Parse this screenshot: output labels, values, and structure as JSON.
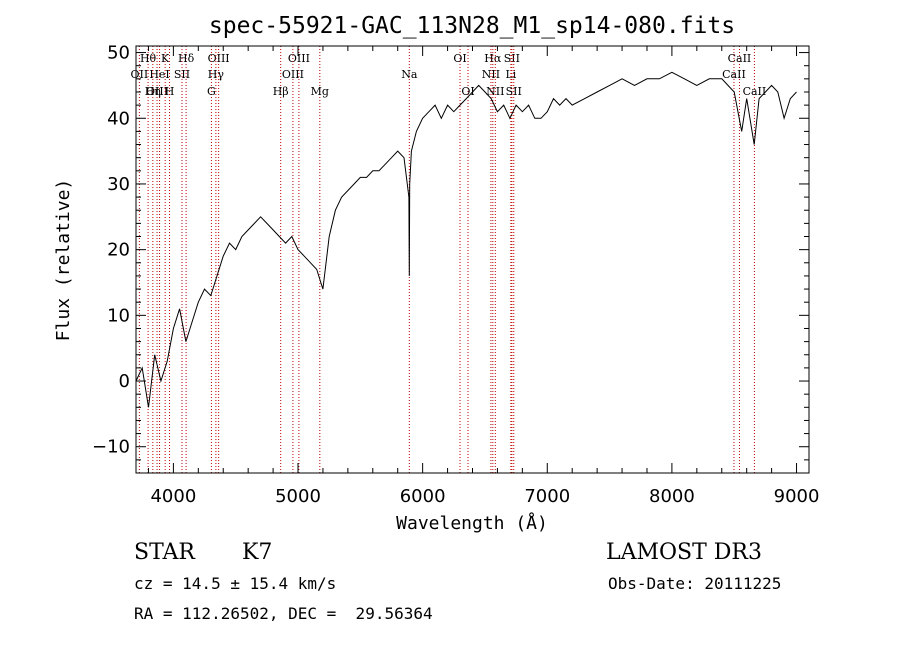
{
  "chart_data": {
    "type": "line",
    "title": "spec-55921-GAC_113N28_M1_sp14-080.fits",
    "xlabel": "Wavelength (Å)",
    "ylabel": "Flux (relative)",
    "xlim": [
      3700,
      9100
    ],
    "ylim": [
      -14,
      51
    ],
    "xticks": [
      4000,
      5000,
      6000,
      7000,
      8000,
      9000
    ],
    "yticks": [
      -10,
      0,
      10,
      20,
      30,
      40,
      50
    ],
    "spectrum": {
      "name": "flux",
      "x": [
        3700,
        3750,
        3800,
        3850,
        3900,
        3950,
        4000,
        4050,
        4100,
        4150,
        4200,
        4250,
        4300,
        4350,
        4400,
        4450,
        4500,
        4550,
        4600,
        4650,
        4700,
        4750,
        4800,
        4850,
        4900,
        4950,
        5000,
        5050,
        5100,
        5150,
        5200,
        5250,
        5300,
        5350,
        5400,
        5450,
        5500,
        5550,
        5600,
        5650,
        5700,
        5750,
        5800,
        5850,
        5890,
        5893,
        5896,
        5910,
        5950,
        6000,
        6050,
        6100,
        6150,
        6200,
        6250,
        6300,
        6350,
        6400,
        6450,
        6500,
        6550,
        6600,
        6650,
        6700,
        6750,
        6800,
        6850,
        6900,
        6950,
        7000,
        7050,
        7100,
        7150,
        7200,
        7300,
        7400,
        7500,
        7600,
        7700,
        7800,
        7900,
        8000,
        8100,
        8200,
        8300,
        8400,
        8450,
        8500,
        8540,
        8560,
        8600,
        8660,
        8700,
        8750,
        8800,
        8850,
        8900,
        8950,
        9000
      ],
      "y": [
        0,
        2,
        -4,
        4,
        0,
        3,
        8,
        11,
        6,
        9,
        12,
        14,
        13,
        16,
        19,
        21,
        20,
        22,
        23,
        24,
        25,
        24,
        23,
        22,
        21,
        22,
        20,
        19,
        18,
        17,
        14,
        22,
        26,
        28,
        29,
        30,
        31,
        31,
        32,
        32,
        33,
        34,
        35,
        34,
        28,
        16,
        30,
        35,
        38,
        40,
        41,
        42,
        40,
        42,
        41,
        42,
        43,
        44,
        45,
        44,
        43,
        41,
        42,
        40,
        42,
        41,
        42,
        40,
        40,
        41,
        43,
        42,
        43,
        42,
        43,
        44,
        45,
        46,
        45,
        46,
        46,
        47,
        46,
        45,
        46,
        46,
        45,
        44,
        40,
        38,
        43,
        36,
        43,
        44,
        45,
        44,
        40,
        43,
        44
      ]
    },
    "line_markers": [
      {
        "label": "Hθ",
        "x": 3797,
        "row": 1
      },
      {
        "label": "OII",
        "x": 3727,
        "row": 2
      },
      {
        "label": "OIII",
        "x": 3869,
        "row": 3
      },
      {
        "label": "K",
        "x": 3934,
        "row": 1
      },
      {
        "label": "HeI",
        "x": 3889,
        "row": 2
      },
      {
        "label": "Hη",
        "x": 3835,
        "row": 3
      },
      {
        "label": "SII",
        "x": 4069,
        "row": 2
      },
      {
        "label": "H",
        "x": 3969,
        "row": 3
      },
      {
        "label": "Hδ",
        "x": 4102,
        "row": 1
      },
      {
        "label": "OIII",
        "x": 4363,
        "row": 1
      },
      {
        "label": "Hγ",
        "x": 4341,
        "row": 2
      },
      {
        "label": "G",
        "x": 4305,
        "row": 3
      },
      {
        "label": "OIII",
        "x": 5007,
        "row": 1
      },
      {
        "label": "OIII",
        "x": 4959,
        "row": 2
      },
      {
        "label": "Hβ",
        "x": 4861,
        "row": 3
      },
      {
        "label": "Mg",
        "x": 5175,
        "row": 3
      },
      {
        "label": "Na",
        "x": 5893,
        "row": 2
      },
      {
        "label": "OI",
        "x": 6300,
        "row": 1
      },
      {
        "label": "OI",
        "x": 6364,
        "row": 3
      },
      {
        "label": "Hα",
        "x": 6563,
        "row": 1
      },
      {
        "label": "NII",
        "x": 6548,
        "row": 2
      },
      {
        "label": "NII",
        "x": 6583,
        "row": 3
      },
      {
        "label": "Li",
        "x": 6708,
        "row": 2
      },
      {
        "label": "SII",
        "x": 6716,
        "row": 1
      },
      {
        "label": "SII",
        "x": 6731,
        "row": 3
      },
      {
        "label": "CaII",
        "x": 8542,
        "row": 1
      },
      {
        "label": "CaII",
        "x": 8498,
        "row": 2
      },
      {
        "label": "CaII",
        "x": 8662,
        "row": 3
      }
    ]
  },
  "info": {
    "class_label": "STAR",
    "subclass_label": "K7",
    "survey": "LAMOST DR3",
    "cz": "cz = 14.5 ± 15.4 km/s",
    "coords": "RA = 112.26502, DEC =  29.56364",
    "obs_date": "Obs-Date: 20111225"
  }
}
